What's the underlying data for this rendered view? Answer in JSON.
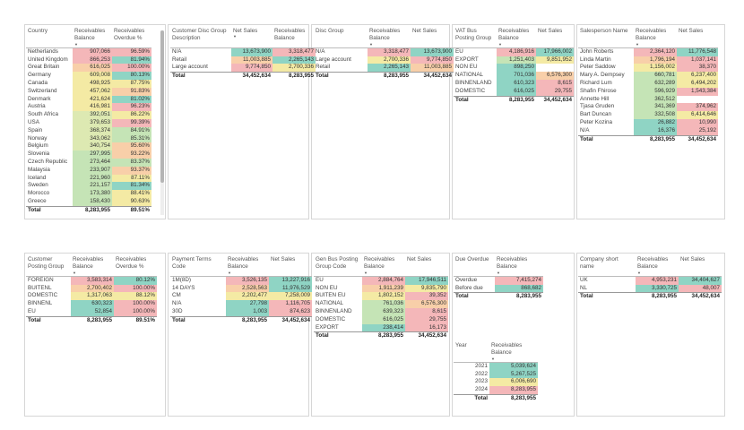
{
  "tables": [
    {
      "id": "country",
      "columns": [
        "Country",
        "Receivables Balance",
        "Receivables Overdue %"
      ],
      "rows": [
        [
          "Netherlands",
          "907,066",
          "96.59%",
          "r",
          "r"
        ],
        [
          "United Kingdom",
          "866,253",
          "81.94%",
          "r",
          "t"
        ],
        [
          "Great Britain",
          "616,025",
          "100.00%",
          "o",
          "r"
        ],
        [
          "Germany",
          "609,008",
          "80.13%",
          "y",
          "t"
        ],
        [
          "Canada",
          "498,925",
          "87.75%",
          "y",
          "y"
        ],
        [
          "Switzerland",
          "457,062",
          "91.83%",
          "y",
          "o"
        ],
        [
          "Denmark",
          "421,624",
          "81.02%",
          "y",
          "t"
        ],
        [
          "Austria",
          "416,981",
          "96.23%",
          "y",
          "r"
        ],
        [
          "South Africa",
          "392,051",
          "86.22%",
          "lg",
          "y"
        ],
        [
          "USA",
          "379,653",
          "99.39%",
          "lg",
          "r"
        ],
        [
          "Spain",
          "368,374",
          "84.91%",
          "lg",
          "g"
        ],
        [
          "Norway",
          "343,062",
          "85.31%",
          "lg",
          "g"
        ],
        [
          "Belgium",
          "340,754",
          "95.60%",
          "lg",
          "o"
        ],
        [
          "Slovenia",
          "297,995",
          "93.22%",
          "g",
          "o"
        ],
        [
          "Czech Republic",
          "273,464",
          "83.37%",
          "g",
          "g"
        ],
        [
          "Malaysia",
          "233,907",
          "93.37%",
          "g",
          "o"
        ],
        [
          "Iceland",
          "221,960",
          "87.11%",
          "g",
          "y"
        ],
        [
          "Sweden",
          "221,157",
          "81.34%",
          "g",
          "t"
        ],
        [
          "Morocco",
          "173,380",
          "88.41%",
          "g",
          "y"
        ],
        [
          "Greece",
          "158,430",
          "90.63%",
          "g",
          "y"
        ]
      ],
      "total": [
        "Total",
        "8,283,955",
        "89.51%"
      ]
    },
    {
      "id": "custdisc",
      "columns": [
        "Customer Disc Group Description",
        "Net Sales",
        "Receivables Balance"
      ],
      "rows": [
        [
          "N/A",
          "13,673,900",
          "3,318,477",
          "t",
          "r"
        ],
        [
          "Retail",
          "11,003,885",
          "2,265,143",
          "o",
          "t"
        ],
        [
          "Large account",
          "9,774,850",
          "2,700,336",
          "r",
          "y"
        ]
      ],
      "total": [
        "Total",
        "34,452,634",
        "8,283,955"
      ]
    },
    {
      "id": "discgroup",
      "columns": [
        "Disc Group",
        "Receivables Balance",
        "Net Sales"
      ],
      "rows": [
        [
          "N/A",
          "3,318,477",
          "13,673,900",
          "r",
          "t"
        ],
        [
          "Large account",
          "2,700,336",
          "9,774,850",
          "y",
          "r"
        ],
        [
          "Retail",
          "2,265,143",
          "11,003,885",
          "t",
          "o"
        ]
      ],
      "total": [
        "Total",
        "8,283,955",
        "34,452,634"
      ]
    },
    {
      "id": "vatbus",
      "columns": [
        "VAT Bus Posting Group",
        "Receivables Balance",
        "Net Sales"
      ],
      "rows": [
        [
          "EU",
          "4,186,916",
          "17,966,002",
          "r",
          "t"
        ],
        [
          "EXPORT",
          "1,251,403",
          "9,851,952",
          "g",
          "y"
        ],
        [
          "NON EU",
          "898,250",
          "",
          "t",
          "w"
        ],
        [
          "NATIONAL",
          "701,036",
          "6,576,300",
          "t",
          "o"
        ],
        [
          "BINNENLAND",
          "610,323",
          "8,615",
          "t",
          "r"
        ],
        [
          "DOMESTIC",
          "616,025",
          "29,755",
          "t",
          "r"
        ]
      ],
      "total": [
        "Total",
        "8,283,955",
        "34,452,634"
      ]
    },
    {
      "id": "salesperson",
      "columns": [
        "Salesperson Name",
        "Receivables Balance",
        "Net Sales"
      ],
      "rows": [
        [
          "John Roberts",
          "2,364,120",
          "11,776,548",
          "r",
          "t"
        ],
        [
          "Linda Martin",
          "1,796,194",
          "1,037,141",
          "o",
          "r"
        ],
        [
          "Peter Saddow",
          "1,156,002",
          "38,370",
          "y",
          "r"
        ],
        [
          "Mary A. Dempsey",
          "660,781",
          "6,237,400",
          "g",
          "y"
        ],
        [
          "Richard Lum",
          "632,289",
          "6,494,202",
          "g",
          "y"
        ],
        [
          "Shafin Fhirose",
          "596,929",
          "1,543,384",
          "g",
          "r"
        ],
        [
          "Annette Hill",
          "362,512",
          "",
          "g",
          "w"
        ],
        [
          "Tjasa Gruden",
          "341,369",
          "374,962",
          "g",
          "r"
        ],
        [
          "Bart Duncan",
          "332,508",
          "6,414,646",
          "g",
          "y"
        ],
        [
          "Peter Kozina",
          "26,882",
          "10,990",
          "t",
          "r"
        ],
        [
          "N/A",
          "16,376",
          "25,192",
          "t",
          "r"
        ]
      ],
      "total": [
        "Total",
        "8,283,955",
        "34,452,634"
      ]
    },
    {
      "id": "custposting",
      "columns": [
        "Customer Posting Group",
        "Receivables Balance",
        "Receivables Overdue %"
      ],
      "rows": [
        [
          "FOREIGN",
          "3,583,314",
          "80.12%",
          "r",
          "t"
        ],
        [
          "BUITENL",
          "2,700,402",
          "100.00%",
          "o",
          "r"
        ],
        [
          "DOMESTIC",
          "1,317,063",
          "88.12%",
          "y",
          "y"
        ],
        [
          "BINNENL",
          "630,323",
          "100.00%",
          "t",
          "r"
        ],
        [
          "EU",
          "52,854",
          "100.00%",
          "t",
          "r"
        ]
      ],
      "total": [
        "Total",
        "8,283,955",
        "89.51%"
      ]
    },
    {
      "id": "payterms",
      "columns": [
        "Payment Terms Code",
        "Receivables Balance",
        "Net Sales"
      ],
      "rows": [
        [
          "1M(8D)",
          "3,526,135",
          "13,227,916",
          "r",
          "t"
        ],
        [
          "14 DAYS",
          "2,528,563",
          "11,976,529",
          "o",
          "t"
        ],
        [
          "CM",
          "2,202,477",
          "7,258,009",
          "y",
          "y"
        ],
        [
          "N/A",
          "27,798",
          "1,116,705",
          "t",
          "r"
        ],
        [
          "30D",
          "1,003",
          "874,623",
          "t",
          "r"
        ]
      ],
      "total": [
        "Total",
        "8,283,955",
        "34,452,634"
      ]
    },
    {
      "id": "genbus",
      "columns": [
        "Gen Bus Posting Group Code",
        "Receivables Balance",
        "Net Sales"
      ],
      "rows": [
        [
          "EU",
          "2,884,764",
          "17,946,511",
          "r",
          "t"
        ],
        [
          "NON EU",
          "1,911,239",
          "9,835,790",
          "o",
          "y"
        ],
        [
          "BUITEN EU",
          "1,802,152",
          "39,352",
          "y",
          "r"
        ],
        [
          "NATIONAL",
          "761,036",
          "6,576,300",
          "g",
          "o"
        ],
        [
          "BINNENLAND",
          "639,323",
          "8,615",
          "g",
          "r"
        ],
        [
          "DOMESTIC",
          "616,025",
          "29,755",
          "g",
          "r"
        ],
        [
          "EXPORT",
          "238,414",
          "16,173",
          "t",
          "r"
        ]
      ],
      "total": [
        "Total",
        "8,283,955",
        "34,452,634"
      ]
    },
    {
      "id": "dueoverdue",
      "columns": [
        "Due Overdue",
        "Receivables Balance"
      ],
      "rows": [
        [
          "Overdue",
          "7,415,274",
          "r"
        ],
        [
          "Before due",
          "868,682",
          "t"
        ]
      ],
      "total": [
        "Total",
        "8,283,955"
      ]
    },
    {
      "id": "year",
      "columns": [
        "Year",
        "Receivables Balance"
      ],
      "rows": [
        [
          "2021",
          "5,039,624",
          "t"
        ],
        [
          "2022",
          "5,267,525",
          "t"
        ],
        [
          "2023",
          "6,006,690",
          "y"
        ],
        [
          "2024",
          "8,283,955",
          "r"
        ]
      ],
      "total": [
        "Total",
        "8,283,955"
      ]
    },
    {
      "id": "company",
      "columns": [
        "Company short name",
        "Receivables Balance",
        "Net Sales"
      ],
      "rows": [
        [
          "UK",
          "4,953,231",
          "34,404,627",
          "r",
          "t"
        ],
        [
          "NL",
          "3,330,725",
          "48,007",
          "t",
          "r"
        ]
      ],
      "total": [
        "Total",
        "8,283,955",
        "34,452,634"
      ]
    }
  ]
}
